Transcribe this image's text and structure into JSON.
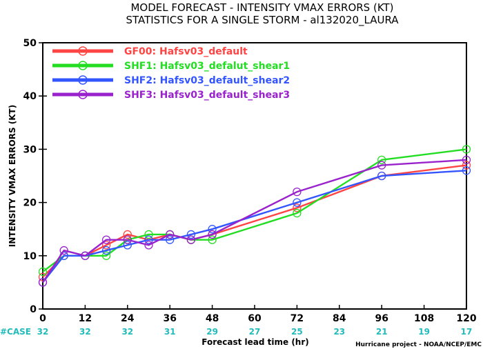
{
  "chart_data": {
    "type": "line",
    "title": "MODEL FORECAST - INTENSITY VMAX ERRORS (KT)",
    "subtitle": "STATISTICS FOR A SINGLE STORM - al132020_LAURA",
    "xlabel": "Forecast lead time (hr)",
    "ylabel": "INTENSITY VMAX ERRORS (KT)",
    "xlim": [
      0,
      120
    ],
    "ylim": [
      0,
      50
    ],
    "xticks": [
      0,
      12,
      24,
      36,
      48,
      60,
      72,
      84,
      96,
      108,
      120
    ],
    "yticks": [
      0,
      10,
      20,
      30,
      40,
      50
    ],
    "legend_position": "top-left",
    "case_label": "#CASE",
    "case_counts": [
      32,
      32,
      32,
      31,
      29,
      27,
      25,
      23,
      21,
      19,
      17
    ],
    "credit": "Hurricane project - NOAA/NCEP/EMC",
    "series": [
      {
        "name": "GF00: Hafsv03_default",
        "color": "#ff4444",
        "x": [
          0,
          6,
          12,
          18,
          24,
          30,
          36,
          42,
          48,
          72,
          96,
          120
        ],
        "y": [
          6,
          10,
          10,
          12,
          14,
          13,
          14,
          13,
          14,
          19,
          25,
          27
        ]
      },
      {
        "name": "SHF1: Hafsv03_defalut_shear1",
        "color": "#22dd22",
        "x": [
          0,
          6,
          12,
          18,
          24,
          30,
          36,
          42,
          48,
          72,
          96,
          120
        ],
        "y": [
          7,
          10,
          10,
          10,
          13,
          14,
          14,
          13,
          13,
          18,
          28,
          30
        ]
      },
      {
        "name": "SHF2: Hafsv03_default_shear2",
        "color": "#3355ff",
        "x": [
          0,
          6,
          12,
          18,
          24,
          30,
          36,
          42,
          48,
          72,
          96,
          120
        ],
        "y": [
          5,
          10,
          10,
          11,
          12,
          13,
          13,
          14,
          15,
          20,
          25,
          26
        ]
      },
      {
        "name": "SHF3: Hafsv03_default_shear3",
        "color": "#9922cc",
        "x": [
          0,
          6,
          12,
          18,
          24,
          30,
          36,
          42,
          48,
          72,
          96,
          120
        ],
        "y": [
          5,
          11,
          10,
          13,
          13,
          12,
          14,
          13,
          14,
          22,
          27,
          28
        ]
      }
    ]
  }
}
